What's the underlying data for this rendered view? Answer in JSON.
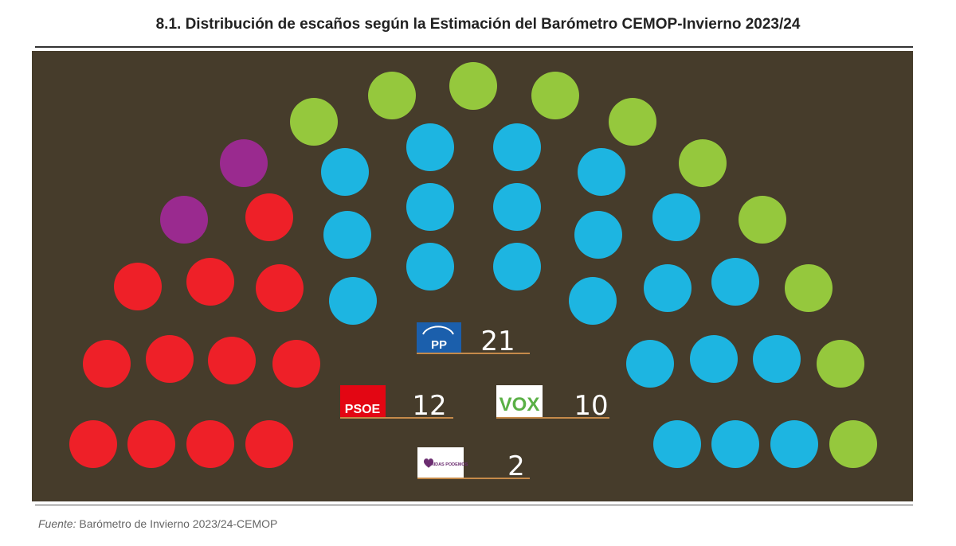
{
  "title": "8.1. Distribución de escaños según la Estimación del Barómetro CEMOP-Invierno 2023/24",
  "source": {
    "label": "Fuente:",
    "text": "Barómetro de Invierno 2023/24-CEMOP"
  },
  "chart_data": {
    "type": "parliament",
    "total_seats": 45,
    "series": [
      {
        "name": "PSOE",
        "seats": 12,
        "color": "#ee2028"
      },
      {
        "name": "Podemos",
        "seats": 2,
        "color": "#9a2a8f"
      },
      {
        "name": "PP",
        "seats": 21,
        "color": "#1db5e1"
      },
      {
        "name": "VOX",
        "seats": 10,
        "color": "#95c83d"
      }
    ],
    "legend": [
      {
        "party": "PP",
        "logo_text": "PP",
        "seats": "21",
        "logo_bg": "#1b5fac",
        "logo_fg": "#ffffff"
      },
      {
        "party": "PSOE",
        "logo_text": "PSOE",
        "seats": "12",
        "logo_bg": "#e30613",
        "logo_fg": "#ffffff"
      },
      {
        "party": "VOX",
        "logo_text": "VOX",
        "seats": "10",
        "logo_bg": "#ffffff",
        "logo_fg": "#5ab046"
      },
      {
        "party": "Unidas Podemos",
        "logo_text": "UNIDAS PODEMOS",
        "seats": "2",
        "logo_bg": "#ffffff",
        "logo_fg": "#6b2d70"
      }
    ],
    "legend_underline_color": "#c58a4a"
  }
}
